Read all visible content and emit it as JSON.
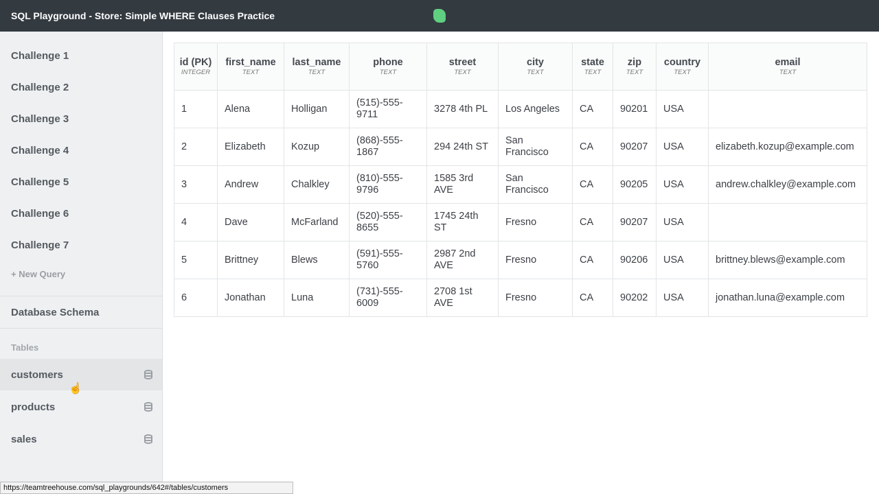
{
  "header": {
    "title": "SQL Playground - Store: Simple WHERE Clauses Practice",
    "logo": "treehouse-logo"
  },
  "sidebar": {
    "challenges": [
      "Challenge 1",
      "Challenge 2",
      "Challenge 3",
      "Challenge 4",
      "Challenge 5",
      "Challenge 6",
      "Challenge 7"
    ],
    "new_query": "+ New Query",
    "schema_title": "Database Schema",
    "tables_label": "Tables",
    "tables": [
      {
        "name": "customers",
        "active": true
      },
      {
        "name": "products"
      },
      {
        "name": "sales"
      }
    ]
  },
  "table": {
    "columns": [
      {
        "name": "id (PK)",
        "type": "INTEGER"
      },
      {
        "name": "first_name",
        "type": "TEXT"
      },
      {
        "name": "last_name",
        "type": "TEXT"
      },
      {
        "name": "phone",
        "type": "TEXT"
      },
      {
        "name": "street",
        "type": "TEXT"
      },
      {
        "name": "city",
        "type": "TEXT"
      },
      {
        "name": "state",
        "type": "TEXT"
      },
      {
        "name": "zip",
        "type": "TEXT"
      },
      {
        "name": "country",
        "type": "TEXT"
      },
      {
        "name": "email",
        "type": "TEXT"
      }
    ],
    "rows": [
      [
        "1",
        "Alena",
        "Holligan",
        "(515)-555-9711",
        "3278 4th PL",
        "Los Angeles",
        "CA",
        "90201",
        "USA",
        ""
      ],
      [
        "2",
        "Elizabeth",
        "Kozup",
        "(868)-555-1867",
        "294 24th ST",
        "San Francisco",
        "CA",
        "90207",
        "USA",
        "elizabeth.kozup@example.com"
      ],
      [
        "3",
        "Andrew",
        "Chalkley",
        "(810)-555-9796",
        "1585 3rd AVE",
        "San Francisco",
        "CA",
        "90205",
        "USA",
        "andrew.chalkley@example.com"
      ],
      [
        "4",
        "Dave",
        "McFarland",
        "(520)-555-8655",
        "1745 24th ST",
        "Fresno",
        "CA",
        "90207",
        "USA",
        ""
      ],
      [
        "5",
        "Brittney",
        "Blews",
        "(591)-555-5760",
        "2987 2nd AVE",
        "Fresno",
        "CA",
        "90206",
        "USA",
        "brittney.blews@example.com"
      ],
      [
        "6",
        "Jonathan",
        "Luna",
        "(731)-555-6009",
        "2708 1st AVE",
        "Fresno",
        "CA",
        "90202",
        "USA",
        "jonathan.luna@example.com"
      ]
    ]
  },
  "status_url": "https://teamtreehouse.com/sql_playgrounds/642#/tables/customers"
}
